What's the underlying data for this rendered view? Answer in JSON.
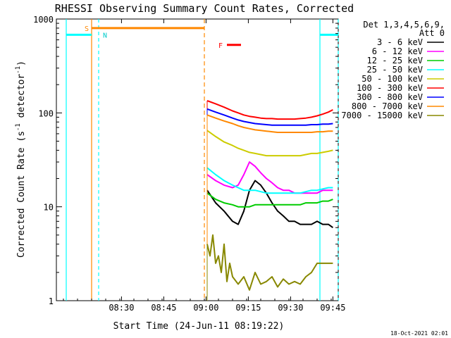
{
  "chart_data": {
    "type": "line",
    "title": "RHESSI Observing Summary Count Rates, Corrected",
    "xlabel": "Start Time (24-Jun-11 08:19:22)",
    "ylabel": "Corrected Count Rate (s-1 detector-1)",
    "ylabel_parts": {
      "a": "Corrected Count Rate (s",
      "sup1": "-1",
      "b": " detector",
      "sup2": "-1",
      "c": ")"
    },
    "y_scale": "log",
    "ylim": [
      1,
      1000
    ],
    "xlim_minutes": [
      0,
      65.6
    ],
    "x_tick_labels": [
      {
        "label": "08:30",
        "t": 10.6
      },
      {
        "label": "08:45",
        "t": 25.6
      },
      {
        "label": "09:00",
        "t": 40.6
      },
      {
        "label": "09:15",
        "t": 55.6
      },
      {
        "label": "09:30",
        "t": 70.6
      },
      {
        "label": "09:45",
        "t": 85.6
      }
    ],
    "y_tick_labels": [
      {
        "label": "1",
        "v": 1
      },
      {
        "label": "10",
        "v": 10
      },
      {
        "label": "100",
        "v": 100
      },
      {
        "label": "1000",
        "v": 1000
      }
    ],
    "legend": {
      "header1": "Det 1,3,4,5,6,9,",
      "header2": "Att 0",
      "placement": "right"
    },
    "series": [
      {
        "name": "3 - 6 keV",
        "color": "#000000",
        "x": [
          41,
          44,
          47,
          50,
          52,
          54,
          56,
          58,
          60,
          62,
          64,
          66,
          68,
          70,
          72,
          74,
          76,
          78,
          80,
          82,
          84,
          85.6
        ],
        "values": [
          15,
          11,
          9,
          7,
          6.5,
          9,
          15,
          19,
          17,
          14,
          11,
          9,
          8,
          7,
          7,
          6.5,
          6.5,
          6.5,
          7,
          6.5,
          6.5,
          6
        ]
      },
      {
        "name": "6 - 12 keV",
        "color": "#ff00ff",
        "x": [
          41,
          44,
          47,
          50,
          52,
          54,
          56,
          58,
          60,
          62,
          64,
          66,
          68,
          70,
          72,
          74,
          76,
          78,
          80,
          82,
          84,
          85.6
        ],
        "values": [
          22,
          19,
          17,
          16,
          17,
          22,
          30,
          27,
          23,
          20,
          18,
          16,
          15,
          15,
          14,
          14,
          14,
          14,
          14,
          15,
          15,
          15
        ]
      },
      {
        "name": "12 - 25 keV",
        "color": "#00cc00",
        "x": [
          41,
          44,
          47,
          50,
          52,
          54,
          56,
          58,
          60,
          62,
          64,
          66,
          68,
          70,
          72,
          74,
          76,
          78,
          80,
          82,
          84,
          85.6
        ],
        "values": [
          14,
          12,
          11,
          10.5,
          10,
          10,
          10,
          10.5,
          10.5,
          10.5,
          10.5,
          10.5,
          10.5,
          10.5,
          10.5,
          10.5,
          11,
          11,
          11,
          11.5,
          11.5,
          12
        ]
      },
      {
        "name": "25 - 50 keV",
        "color": "#00ffff",
        "x": [
          41,
          44,
          47,
          50,
          52,
          54,
          56,
          58,
          60,
          62,
          64,
          66,
          68,
          70,
          72,
          74,
          76,
          78,
          80,
          82,
          84,
          85.6
        ],
        "values": [
          26,
          22,
          19,
          17,
          16,
          15,
          15,
          15,
          14.5,
          14,
          14,
          14,
          14,
          14,
          14,
          14,
          14.5,
          15,
          15,
          15.5,
          16,
          16
        ]
      },
      {
        "name": "50 - 100 keV",
        "color": "#cccc00",
        "x": [
          41,
          44,
          47,
          50,
          52,
          54,
          56,
          58,
          60,
          62,
          64,
          66,
          68,
          70,
          72,
          74,
          76,
          78,
          80,
          82,
          84,
          85.6
        ],
        "values": [
          65,
          56,
          49,
          45,
          42,
          40,
          38,
          37,
          36,
          35,
          35,
          35,
          35,
          35,
          35,
          35,
          36,
          37,
          37,
          38,
          39,
          40
        ]
      },
      {
        "name": "100 - 300 keV",
        "color": "#ff0000",
        "x": [
          41,
          44,
          47,
          50,
          52,
          54,
          56,
          58,
          60,
          62,
          64,
          66,
          68,
          70,
          72,
          74,
          76,
          78,
          80,
          82,
          84,
          85.6
        ],
        "values": [
          135,
          125,
          115,
          105,
          100,
          95,
          92,
          90,
          88,
          87,
          87,
          86,
          86,
          86,
          86,
          87,
          88,
          90,
          93,
          97,
          102,
          108
        ]
      },
      {
        "name": "300 - 800 keV",
        "color": "#0000ff",
        "x": [
          41,
          44,
          47,
          50,
          52,
          54,
          56,
          58,
          60,
          62,
          64,
          66,
          68,
          70,
          72,
          74,
          76,
          78,
          80,
          82,
          84,
          85.6
        ],
        "values": [
          110,
          102,
          95,
          88,
          84,
          81,
          79,
          77,
          76,
          75,
          74,
          74,
          74,
          74,
          74,
          74,
          74,
          75,
          75,
          76,
          76,
          77
        ]
      },
      {
        "name": "800 - 7000 keV",
        "color": "#ff8800",
        "x": [
          41,
          44,
          47,
          50,
          52,
          54,
          56,
          58,
          60,
          62,
          64,
          66,
          68,
          70,
          72,
          74,
          76,
          78,
          80,
          82,
          84,
          85.6
        ],
        "values": [
          95,
          88,
          82,
          77,
          73,
          70,
          68,
          66,
          65,
          64,
          63,
          62,
          62,
          62,
          62,
          62,
          62,
          62,
          63,
          63,
          64,
          64
        ]
      },
      {
        "name": "7000 - 15000 keV",
        "color": "#888800",
        "x": [
          41,
          42,
          43,
          44,
          45,
          46,
          47,
          48,
          49,
          50,
          52,
          54,
          56,
          58,
          60,
          62,
          64,
          66,
          68,
          70,
          72,
          74,
          76,
          78,
          80,
          82,
          84,
          85.6
        ],
        "values": [
          4,
          3,
          5,
          2.5,
          3,
          2,
          4,
          1.6,
          2.5,
          1.8,
          1.5,
          1.8,
          1.3,
          2,
          1.5,
          1.6,
          1.8,
          1.4,
          1.7,
          1.5,
          1.6,
          1.5,
          1.8,
          2,
          2.5,
          2.5,
          2.5,
          2.5
        ]
      }
    ],
    "annotations": {
      "saa_label": "S",
      "night_label": "N",
      "flare_label": "F",
      "saa_bar": {
        "x": [
          0,
          40
        ],
        "value": 800,
        "color": "#ff8800"
      },
      "night_bars": [
        {
          "x": [
            -9,
            0
          ],
          "value": 680,
          "color": "#00ffff"
        },
        {
          "x": [
            81,
            91
          ],
          "value": 680,
          "color": "#00ffff"
        }
      ],
      "flare_bar": {
        "x": [
          48,
          53
        ],
        "value": 530,
        "color": "#ff0000"
      },
      "orange_lines": [
        0,
        40
      ],
      "cyan_lines": [
        -9,
        2.5,
        81,
        91
      ]
    },
    "footer_date": "18-Oct-2021 02:01"
  }
}
